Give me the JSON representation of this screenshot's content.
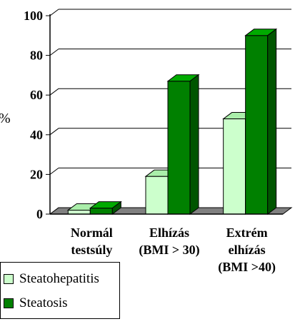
{
  "chart_data": {
    "type": "bar",
    "ylabel": "%",
    "ylim": [
      0,
      100
    ],
    "yticks": [
      "0",
      "20",
      "40",
      "60",
      "80",
      "100"
    ],
    "categories": [
      [
        "Normál",
        "testsúly"
      ],
      [
        "Elhízás",
        "(BMI > 30)"
      ],
      [
        "Extrém",
        "elhízás",
        "(BMI >40)"
      ]
    ],
    "series": [
      {
        "name": "Steatohepatitis",
        "values": [
          2,
          19,
          48
        ],
        "color": "#ccffcc",
        "side": "#99dd99",
        "top": "#aaeeaa"
      },
      {
        "name": "Steatosis",
        "values": [
          3,
          67,
          90
        ],
        "color": "#008000",
        "side": "#005500",
        "top": "#00aa00"
      }
    ],
    "grid": true,
    "legend": "bottom-left"
  }
}
